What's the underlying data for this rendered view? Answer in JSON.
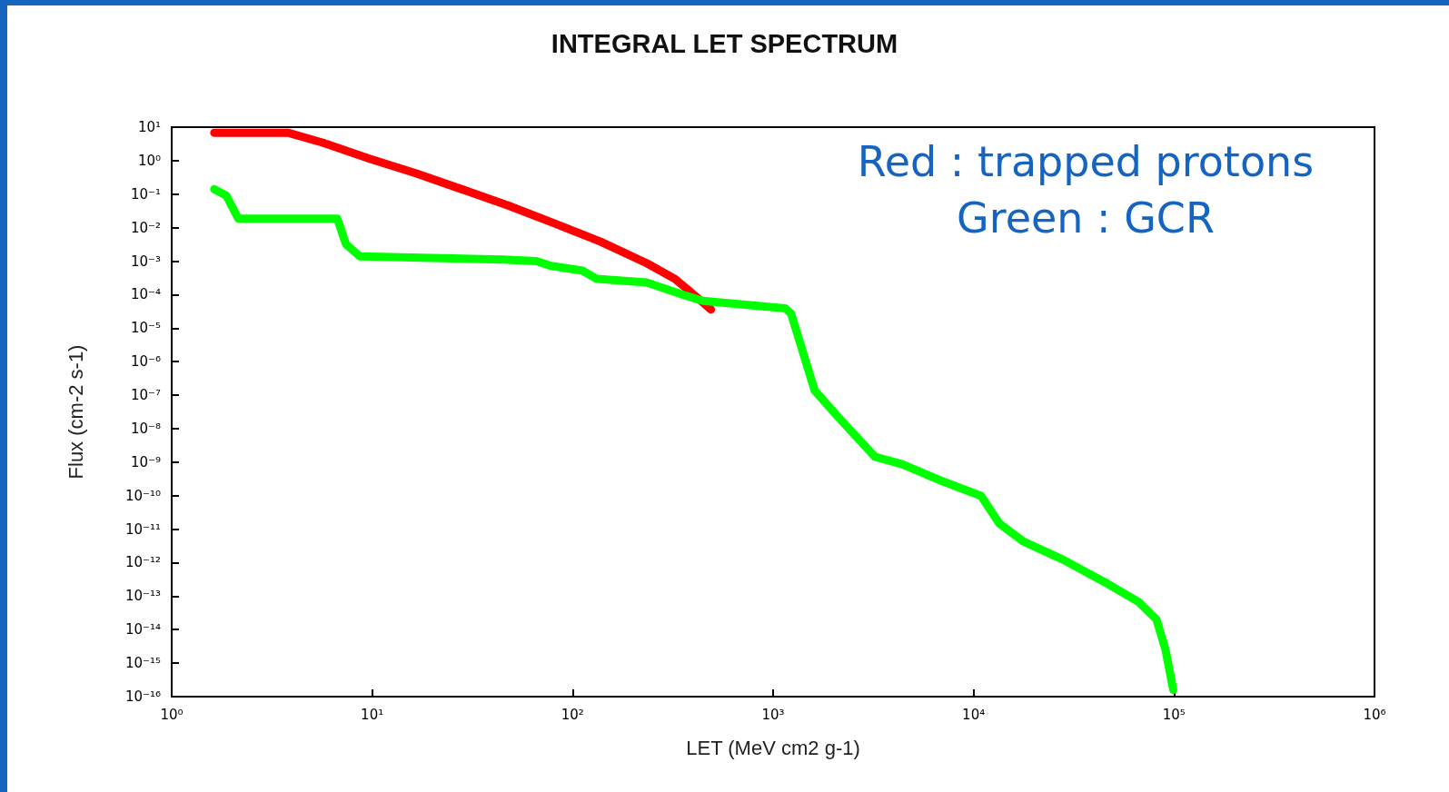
{
  "chart_data": {
    "type": "line",
    "title": "INTEGRAL LET SPECTRUM",
    "xlabel": "LET (MeV cm2 g-1)",
    "ylabel": "Flux (cm-2 s-1)",
    "annotations": [
      "Red : trapped protons",
      "Green : GCR"
    ],
    "log": "xy",
    "grid": false,
    "marker": "none",
    "line_style": "solid",
    "xlim": [
      1,
      1000000
    ],
    "xticks": [
      {
        "value": 1,
        "label": "10⁰"
      },
      {
        "value": 10,
        "label": "10¹"
      },
      {
        "value": 100,
        "label": "10²"
      },
      {
        "value": 1000,
        "label": "10³"
      },
      {
        "value": 10000,
        "label": "10⁴"
      },
      {
        "value": 100000,
        "label": "10⁵"
      },
      {
        "value": 1000000,
        "label": "10⁶"
      }
    ],
    "ylim": [
      1e-16,
      10
    ],
    "yticks": [
      {
        "value": 1e-16,
        "label": "10⁻¹⁶"
      },
      {
        "value": 1e-15,
        "label": "10⁻¹⁵"
      },
      {
        "value": 1e-14,
        "label": "10⁻¹⁴"
      },
      {
        "value": 1e-13,
        "label": "10⁻¹³"
      },
      {
        "value": 1e-12,
        "label": "10⁻¹²"
      },
      {
        "value": 1e-11,
        "label": "10⁻¹¹"
      },
      {
        "value": 1e-10,
        "label": "10⁻¹⁰"
      },
      {
        "value": 1e-09,
        "label": "10⁻⁹"
      },
      {
        "value": 1e-08,
        "label": "10⁻⁸"
      },
      {
        "value": 1e-07,
        "label": "10⁻⁷"
      },
      {
        "value": 1e-06,
        "label": "10⁻⁶"
      },
      {
        "value": 1e-05,
        "label": "10⁻⁵"
      },
      {
        "value": 0.0001,
        "label": "10⁻⁴"
      },
      {
        "value": 0.001,
        "label": "10⁻³"
      },
      {
        "value": 0.01,
        "label": "10⁻²"
      },
      {
        "value": 0.1,
        "label": "10⁻¹"
      },
      {
        "value": 1,
        "label": "10⁰"
      },
      {
        "value": 10,
        "label": "10¹"
      }
    ],
    "series": [
      {
        "color": "#ff0000",
        "x": [
          1.63,
          3.8,
          5.7,
          9.7,
          16.5,
          28,
          48,
          81,
          138,
          234,
          324,
          417,
          490
        ],
        "values": [
          6.8,
          6.8,
          3.4,
          1.15,
          0.42,
          0.14,
          0.045,
          0.0135,
          0.0038,
          0.00087,
          0.000295,
          8.3e-05,
          3.6e-05
        ]
      },
      {
        "color": "#00ff00",
        "x": [
          1.63,
          1.87,
          2.15,
          6.7,
          7.4,
          8.7,
          45,
          66,
          78,
          112,
          132,
          234,
          363,
          447,
          1150,
          1230,
          1610,
          2050,
          3220,
          4400,
          6930,
          10900,
          13400,
          17700,
          27900,
          46900,
          66400,
          81800,
          90800,
          99100
        ],
        "values": [
          0.14,
          0.091,
          0.0186,
          0.0186,
          0.0032,
          0.00138,
          0.00112,
          0.001,
          0.00072,
          0.00052,
          0.000295,
          0.00023,
          9.5e-05,
          6.5e-05,
          3.9e-05,
          2.7e-05,
          1.4e-07,
          2.7e-08,
          1.45e-09,
          8.7e-10,
          2.75e-10,
          9.8e-11,
          1.5e-11,
          4.3e-12,
          1.23e-12,
          2.3e-13,
          6.8e-14,
          2e-14,
          2.4e-15,
          1.6e-16
        ]
      }
    ]
  }
}
